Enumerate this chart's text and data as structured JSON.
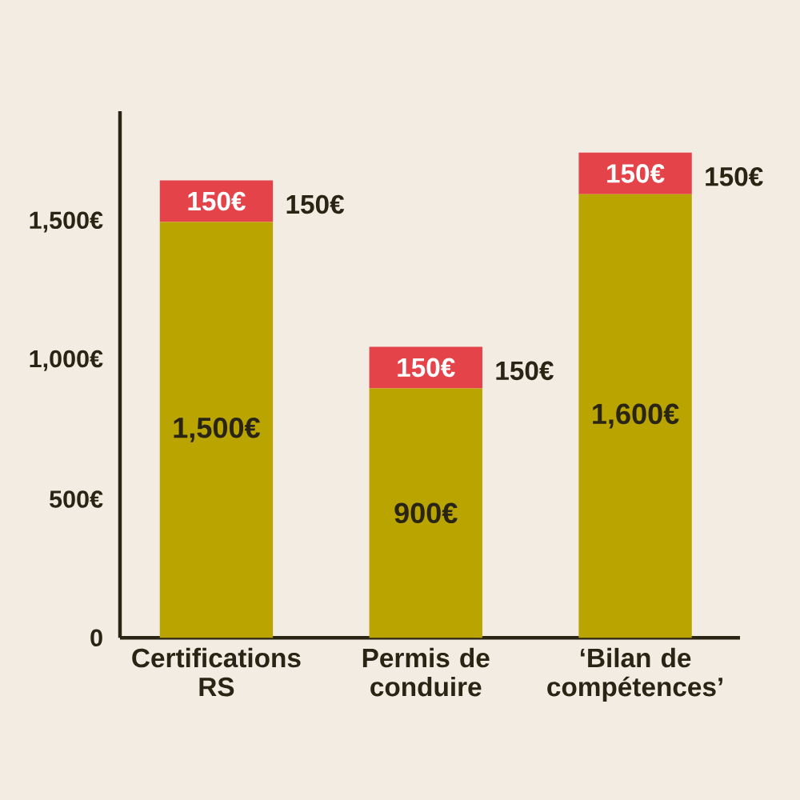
{
  "chart_data": {
    "type": "bar",
    "stacked": true,
    "categories": [
      "Certifications RS",
      "Permis de conduire",
      "‘Bilan de compétences’"
    ],
    "series": [
      {
        "color": "#baa500",
        "values": [
          1500,
          900,
          1600
        ],
        "value_labels": [
          "1,500€",
          "900€",
          "1,600€"
        ]
      },
      {
        "color": "#e5434a",
        "values": [
          150,
          150,
          150
        ],
        "value_labels": [
          "150€",
          "150€",
          "150€"
        ]
      }
    ],
    "ylim": [
      0,
      1900
    ],
    "yticks": [
      0,
      {
        "value": 500,
        "label": "500€"
      },
      {
        "value": 1000,
        "label": "1,000€"
      },
      {
        "value": 1500,
        "label": "1,500€"
      }
    ],
    "annotations": [
      {
        "text": "150€",
        "x": "Certifications RS",
        "y": 1650
      },
      {
        "text": "150€",
        "x": "Permis de conduire",
        "y": 1050
      },
      {
        "text": "150€",
        "x": "‘Bilan de compétences’",
        "y": 1750
      }
    ],
    "grid": false
  }
}
